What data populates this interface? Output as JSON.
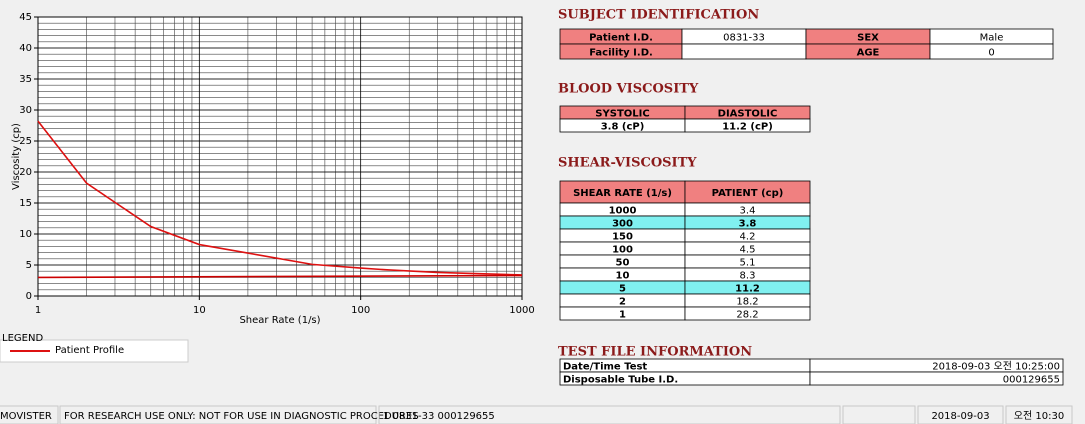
{
  "chart_data": {
    "type": "line",
    "x_label": "Shear Rate (1/s)",
    "y_label": "Viscosity (cp)",
    "series": [
      {
        "name": "Patient Profile",
        "color": "#dd1111",
        "x": [
          1,
          2,
          5,
          10,
          50,
          100,
          150,
          300,
          1000
        ],
        "values": [
          28.2,
          18.2,
          11.2,
          8.3,
          5.1,
          4.5,
          4.2,
          3.8,
          3.4
        ]
      },
      {
        "color": "#cc0000",
        "x": [
          1,
          1000
        ],
        "values": [
          3.0,
          3.3
        ]
      }
    ],
    "xlim": [
      1,
      1000
    ],
    "xticks": [
      1,
      10,
      100,
      1000
    ],
    "xlog": true,
    "ylim": [
      0,
      45
    ],
    "yticks": [
      0,
      5,
      10,
      15,
      20,
      25,
      30,
      35,
      40,
      45
    ],
    "grid": true,
    "minor_grid": true,
    "legend_title": "LEGEND"
  },
  "subject": {
    "title": "SUBJECT IDENTIFICATION",
    "rows": [
      [
        "Patient I.D.",
        "0831-33",
        "SEX",
        "Male"
      ],
      [
        "Facility I.D.",
        null,
        "AGE",
        "0"
      ]
    ]
  },
  "blood": {
    "title": "BLOOD VISCOSITY",
    "headers": [
      "SYSTOLIC",
      "DIASTOLIC"
    ],
    "values": [
      "3.8 (cP)",
      "11.2 (cP)"
    ]
  },
  "shear": {
    "title": "SHEAR-VISCOSITY",
    "headers": [
      "SHEAR RATE (1/s)",
      "PATIENT (cp)"
    ],
    "rows": [
      {
        "rate": "1000",
        "patient": "3.4",
        "highlight": false
      },
      {
        "rate": "300",
        "patient": "3.8",
        "highlight": true
      },
      {
        "rate": "150",
        "patient": "4.2",
        "highlight": false
      },
      {
        "rate": "100",
        "patient": "4.5",
        "highlight": false
      },
      {
        "rate": "50",
        "patient": "5.1",
        "highlight": false
      },
      {
        "rate": "10",
        "patient": "8.3",
        "highlight": false
      },
      {
        "rate": "5",
        "patient": "11.2",
        "highlight": true
      },
      {
        "rate": "2",
        "patient": "18.2",
        "highlight": false
      },
      {
        "rate": "1",
        "patient": "28.2",
        "highlight": false
      }
    ]
  },
  "test": {
    "title": "TEST FILE INFORMATION",
    "rows": [
      [
        "Date/Time Test",
        "2018-09-03   오전 10:25:00"
      ],
      [
        "Disposable Tube I.D.",
        "000129655"
      ]
    ]
  },
  "status": [
    "MOVISTER",
    "FOR RESEARCH USE ONLY: NOT FOR USE IN DIAGNOSTIC PROCEDURES",
    "1  0831-33  000129655",
    "2018-09-03",
    "오전 10:30"
  ]
}
